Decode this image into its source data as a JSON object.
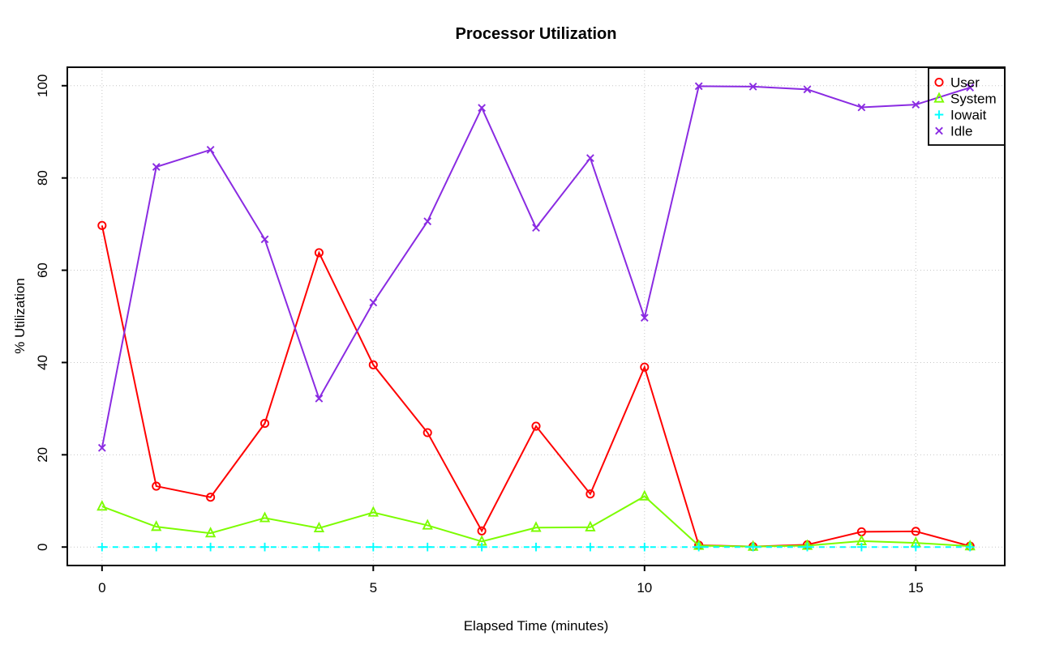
{
  "chart_data": {
    "type": "line",
    "title": "Processor Utilization",
    "xlabel": "Elapsed Time (minutes)",
    "ylabel": "% Utilization",
    "x": [
      0,
      1,
      2,
      3,
      4,
      5,
      6,
      7,
      8,
      9,
      10,
      11,
      12,
      13,
      14,
      15,
      16
    ],
    "series": [
      {
        "name": "User",
        "color": "#ff0000",
        "marker": "circle",
        "line": "solid",
        "values": [
          69.7,
          13.2,
          10.8,
          26.8,
          63.8,
          39.5,
          24.8,
          3.5,
          26.2,
          11.5,
          39.0,
          0.4,
          0.1,
          0.5,
          3.3,
          3.4,
          0.2
        ]
      },
      {
        "name": "System",
        "color": "#7cfc00",
        "marker": "triangle",
        "line": "solid",
        "values": [
          8.8,
          4.4,
          3.0,
          6.3,
          4.1,
          7.5,
          4.7,
          1.2,
          4.2,
          4.3,
          11.0,
          0.3,
          0.1,
          0.3,
          1.3,
          0.9,
          0.2
        ]
      },
      {
        "name": "Iowait",
        "color": "#00ffff",
        "marker": "plus",
        "line": "dashed",
        "values": [
          0,
          0,
          0,
          0,
          0,
          0,
          0,
          0,
          0,
          0,
          0,
          0,
          0,
          0,
          0,
          0,
          0
        ]
      },
      {
        "name": "Idle",
        "color": "#8a2be2",
        "marker": "x",
        "line": "solid",
        "values": [
          21.5,
          82.4,
          86.1,
          66.7,
          32.2,
          53.0,
          70.6,
          95.2,
          69.2,
          84.3,
          49.7,
          99.9,
          99.8,
          99.2,
          95.3,
          95.9,
          99.6
        ]
      }
    ],
    "xticks": [
      0,
      5,
      10,
      15
    ],
    "yticks": [
      0,
      20,
      40,
      60,
      80,
      100
    ],
    "xtick_labels": [
      "0",
      "5",
      "10",
      "15"
    ],
    "ytick_labels": [
      "0",
      "20",
      "40",
      "60",
      "80",
      "100"
    ],
    "xlim": [
      0,
      16
    ],
    "ylim": [
      0,
      100
    ],
    "grid": true,
    "grid_style": "dotted",
    "grid_color": "#c6c6c6",
    "axis_color": "#000000",
    "legend_position": "topright"
  }
}
